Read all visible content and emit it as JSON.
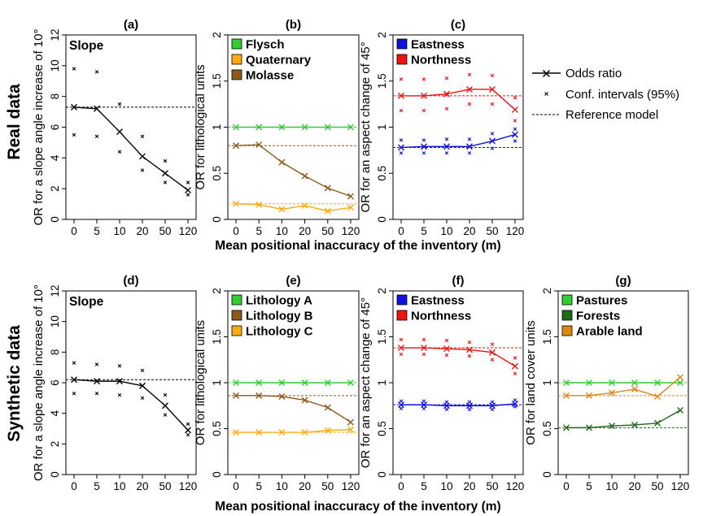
{
  "figure": {
    "row_labels": [
      "Real data",
      "Synthetic data"
    ],
    "shared_xlabel": "Mean positional inaccuracy of the inventory (m)",
    "legend": {
      "odds_ratio": "Odds ratio",
      "conf_intervals": "Conf. intervals (95%)",
      "reference_model": "Reference model"
    }
  },
  "chart_data": [
    {
      "id": "a",
      "panel_label": "(a)",
      "type": "line",
      "ylabel": "OR for a slope angle increase of 10°",
      "text_label": "Slope",
      "x": [
        "0",
        "5",
        "10",
        "20",
        "50",
        "120"
      ],
      "ylim": [
        0,
        12
      ],
      "yticks": [
        0,
        2,
        4,
        6,
        8,
        10,
        12
      ],
      "series": [
        {
          "name": "Slope",
          "color": "#000000",
          "values": [
            7.3,
            7.2,
            5.7,
            4.1,
            3.0,
            1.9
          ],
          "ci_upper": [
            9.8,
            9.6,
            7.5,
            5.4,
            3.8,
            2.4
          ],
          "ci_lower": [
            5.5,
            5.4,
            4.4,
            3.2,
            2.4,
            1.6
          ],
          "reference": 7.3
        }
      ]
    },
    {
      "id": "b",
      "panel_label": "(b)",
      "type": "line",
      "ylabel": "OR for lithological units",
      "x": [
        "0",
        "5",
        "10",
        "20",
        "50",
        "120"
      ],
      "ylim": [
        0,
        2
      ],
      "yticks": [
        0,
        0.5,
        1,
        1.5,
        2
      ],
      "legend_position": "top-left",
      "series": [
        {
          "name": "Flysch",
          "color": "#33cc33",
          "values": [
            1,
            1,
            1,
            1,
            1,
            1
          ],
          "reference": 1
        },
        {
          "name": "Quaternary",
          "color": "#ffaa11",
          "values": [
            0.17,
            0.16,
            0.11,
            0.15,
            0.09,
            0.13
          ],
          "reference": 0.17
        },
        {
          "name": "Molasse",
          "color": "#8b5a1a",
          "values": [
            0.8,
            0.81,
            0.62,
            0.47,
            0.34,
            0.25
          ],
          "reference": 0.8
        }
      ]
    },
    {
      "id": "c",
      "panel_label": "(c)",
      "type": "line",
      "ylabel": "OR for an aspect change of 45°",
      "x": [
        "0",
        "5",
        "10",
        "20",
        "50",
        "120"
      ],
      "ylim": [
        0,
        2
      ],
      "yticks": [
        0,
        0.5,
        1,
        1.5,
        2
      ],
      "legend_position": "top-left",
      "series": [
        {
          "name": "Eastness",
          "color": "#1111dd",
          "values": [
            0.78,
            0.79,
            0.79,
            0.79,
            0.85,
            0.92
          ],
          "ci_upper": [
            0.86,
            0.86,
            0.87,
            0.87,
            0.93,
            0.98
          ],
          "ci_lower": [
            0.72,
            0.72,
            0.72,
            0.72,
            0.77,
            0.85
          ],
          "reference": 0.78
        },
        {
          "name": "Northness",
          "color": "#ee1111",
          "values": [
            1.34,
            1.34,
            1.36,
            1.41,
            1.41,
            1.19
          ],
          "ci_upper": [
            1.52,
            1.52,
            1.53,
            1.57,
            1.56,
            1.32
          ],
          "ci_lower": [
            1.18,
            1.18,
            1.2,
            1.25,
            1.25,
            1.07
          ],
          "reference": 1.34
        }
      ]
    },
    {
      "id": "d",
      "panel_label": "(d)",
      "type": "line",
      "ylabel": "OR for a slope angle increase of 10°",
      "text_label": "Slope",
      "x": [
        "0",
        "5",
        "10",
        "20",
        "50",
        "120"
      ],
      "ylim": [
        0,
        12
      ],
      "yticks": [
        0,
        2,
        4,
        6,
        8,
        10,
        12
      ],
      "series": [
        {
          "name": "Slope",
          "color": "#000000",
          "values": [
            6.2,
            6.1,
            6.1,
            5.8,
            4.5,
            2.9
          ],
          "ci_upper": [
            7.3,
            7.2,
            7.1,
            6.8,
            5.2,
            3.3
          ],
          "ci_lower": [
            5.3,
            5.3,
            5.2,
            5.0,
            3.9,
            2.6
          ],
          "reference": 6.2
        }
      ]
    },
    {
      "id": "e",
      "panel_label": "(e)",
      "type": "line",
      "ylabel": "OR for lithological units",
      "x": [
        "0",
        "5",
        "10",
        "20",
        "50",
        "120"
      ],
      "ylim": [
        0,
        2
      ],
      "yticks": [
        0,
        0.5,
        1,
        1.5,
        2
      ],
      "legend_position": "top-left",
      "series": [
        {
          "name": "Lithology A",
          "color": "#33cc33",
          "values": [
            1,
            1,
            1,
            1,
            1,
            1
          ],
          "reference": 1
        },
        {
          "name": "Lithology B",
          "color": "#8b5a1a",
          "values": [
            0.86,
            0.86,
            0.85,
            0.81,
            0.73,
            0.57
          ],
          "reference": 0.86
        },
        {
          "name": "Lithology C",
          "color": "#ffaa11",
          "values": [
            0.46,
            0.46,
            0.46,
            0.46,
            0.48,
            0.49
          ],
          "reference": 0.46
        }
      ]
    },
    {
      "id": "f",
      "panel_label": "(f)",
      "type": "line",
      "ylabel": "OR for an aspect change of 45°",
      "x": [
        "0",
        "5",
        "10",
        "20",
        "50",
        "120"
      ],
      "ylim": [
        0,
        2
      ],
      "yticks": [
        0,
        0.5,
        1,
        1.5,
        2
      ],
      "legend_position": "top-left",
      "series": [
        {
          "name": "Eastness",
          "color": "#1111dd",
          "values": [
            0.76,
            0.76,
            0.75,
            0.75,
            0.75,
            0.77
          ],
          "ci_upper": [
            0.8,
            0.8,
            0.79,
            0.79,
            0.79,
            0.81
          ],
          "ci_lower": [
            0.72,
            0.72,
            0.71,
            0.71,
            0.71,
            0.74
          ],
          "reference": 0.76
        },
        {
          "name": "Northness",
          "color": "#ee1111",
          "values": [
            1.38,
            1.38,
            1.37,
            1.36,
            1.33,
            1.18
          ],
          "ci_upper": [
            1.47,
            1.47,
            1.46,
            1.44,
            1.42,
            1.27
          ],
          "ci_lower": [
            1.31,
            1.31,
            1.3,
            1.29,
            1.25,
            1.1
          ],
          "reference": 1.38
        }
      ]
    },
    {
      "id": "g",
      "panel_label": "(g)",
      "type": "line",
      "ylabel": "OR for land cover units",
      "x": [
        "0",
        "5",
        "10",
        "20",
        "50",
        "120"
      ],
      "ylim": [
        0,
        2
      ],
      "yticks": [
        0,
        0.5,
        1,
        1.5,
        2
      ],
      "legend_position": "top-left",
      "series": [
        {
          "name": "Pastures",
          "color": "#33cc33",
          "values": [
            1,
            1,
            1,
            1,
            1,
            1
          ],
          "reference": 1
        },
        {
          "name": "Forests",
          "color": "#1a6b1a",
          "values": [
            0.51,
            0.51,
            0.53,
            0.54,
            0.56,
            0.7
          ],
          "reference": 0.51
        },
        {
          "name": "Arable land",
          "color": "#dd8811",
          "values": [
            0.86,
            0.86,
            0.89,
            0.93,
            0.85,
            1.06
          ],
          "reference": 0.86
        }
      ]
    }
  ]
}
